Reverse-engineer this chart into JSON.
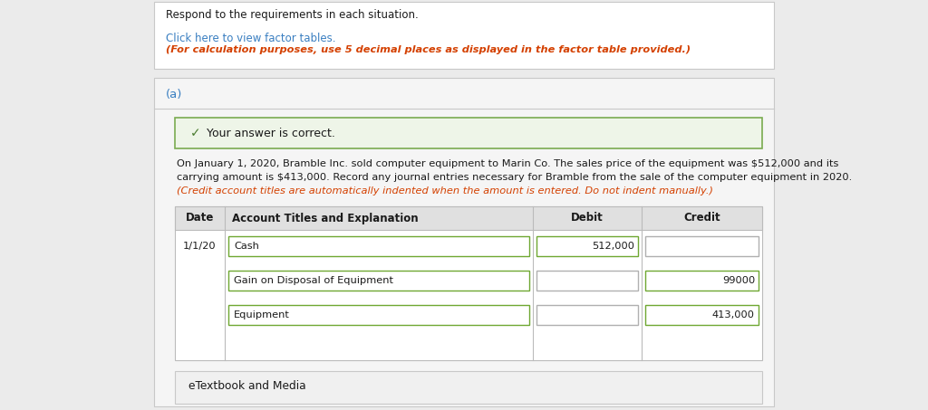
{
  "bg_color": "#ebebeb",
  "title_text": "Respond to the requirements in each situation.",
  "link_text": "Click here to view factor tables.",
  "italic_note": "(For calculation purposes, use 5 decimal places as displayed in the factor table provided.)",
  "section_label": "(a)",
  "correct_text": "Your answer is correct.",
  "desc_line1": "On January 1, 2020, Bramble Inc. sold computer equipment to Marin Co. The sales price of the equipment was $512,000 and its",
  "desc_line2": "carrying amount is $413,000. Record any journal entries necessary for Bramble from the sale of the computer equipment in 2020.",
  "italic_warning": "(Credit account titles are automatically indented when the amount is entered. Do not indent manually.)",
  "table_headers": [
    "Date",
    "Account Titles and Explanation",
    "Debit",
    "Credit"
  ],
  "rows": [
    {
      "date": "1/1/20",
      "account": "Cash",
      "debit": "512,000",
      "credit": ""
    },
    {
      "date": "",
      "account": "Gain on Disposal of Equipment",
      "debit": "",
      "credit": "99000"
    },
    {
      "date": "",
      "account": "Equipment",
      "debit": "",
      "credit": "413,000"
    }
  ],
  "etextbook_text": "eTextbook and Media",
  "check_color": "#4a7c2f",
  "correct_bg": "#eef5e8",
  "correct_border": "#7aab50",
  "header_bg": "#e0e0e0",
  "input_border_green": "#6fa832",
  "input_border_gray": "#b0b0b0",
  "link_color": "#3a7fc1",
  "red_color": "#d44000",
  "text_color": "#1a1a1a",
  "section_color": "#3a7fc1",
  "white": "#ffffff",
  "card_border": "#c8c8c8",
  "table_border": "#bbbbbb",
  "cell_bg_light": "#f0f0f0"
}
